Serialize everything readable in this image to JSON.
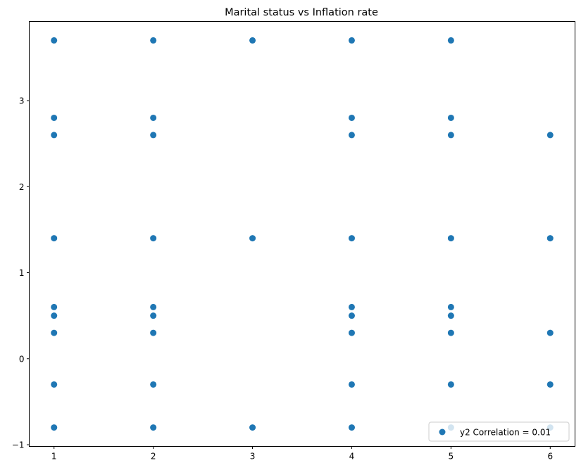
{
  "chart_data": {
    "type": "scatter",
    "title": "Marital status vs Inflation rate",
    "xlabel": "",
    "ylabel": "",
    "xlim": [
      0.75,
      6.25
    ],
    "ylim": [
      -1.02,
      3.92
    ],
    "x_ticks": [
      1,
      2,
      3,
      4,
      5,
      6
    ],
    "y_ticks": [
      -1,
      0,
      1,
      2,
      3
    ],
    "grid": false,
    "legend_position": "lower right",
    "series": [
      {
        "name": "y2 Correlation = 0.01",
        "color": "#1f77b4",
        "points": [
          [
            1,
            3.7
          ],
          [
            1,
            2.8
          ],
          [
            1,
            2.6
          ],
          [
            1,
            1.4
          ],
          [
            1,
            0.6
          ],
          [
            1,
            0.5
          ],
          [
            1,
            0.3
          ],
          [
            1,
            -0.3
          ],
          [
            1,
            -0.8
          ],
          [
            2,
            3.7
          ],
          [
            2,
            2.8
          ],
          [
            2,
            2.6
          ],
          [
            2,
            1.4
          ],
          [
            2,
            0.6
          ],
          [
            2,
            0.5
          ],
          [
            2,
            0.3
          ],
          [
            2,
            -0.3
          ],
          [
            2,
            -0.8
          ],
          [
            3,
            3.7
          ],
          [
            3,
            1.4
          ],
          [
            3,
            -0.8
          ],
          [
            4,
            3.7
          ],
          [
            4,
            2.8
          ],
          [
            4,
            2.6
          ],
          [
            4,
            1.4
          ],
          [
            4,
            0.6
          ],
          [
            4,
            0.5
          ],
          [
            4,
            0.3
          ],
          [
            4,
            -0.3
          ],
          [
            4,
            -0.8
          ],
          [
            5,
            3.7
          ],
          [
            5,
            2.8
          ],
          [
            5,
            2.6
          ],
          [
            5,
            1.4
          ],
          [
            5,
            0.6
          ],
          [
            5,
            0.5
          ],
          [
            5,
            0.3
          ],
          [
            5,
            -0.3
          ],
          [
            5,
            -0.8
          ],
          [
            6,
            2.6
          ],
          [
            6,
            1.4
          ],
          [
            6,
            0.3
          ],
          [
            6,
            -0.3
          ],
          [
            6,
            -0.8
          ]
        ]
      }
    ]
  }
}
